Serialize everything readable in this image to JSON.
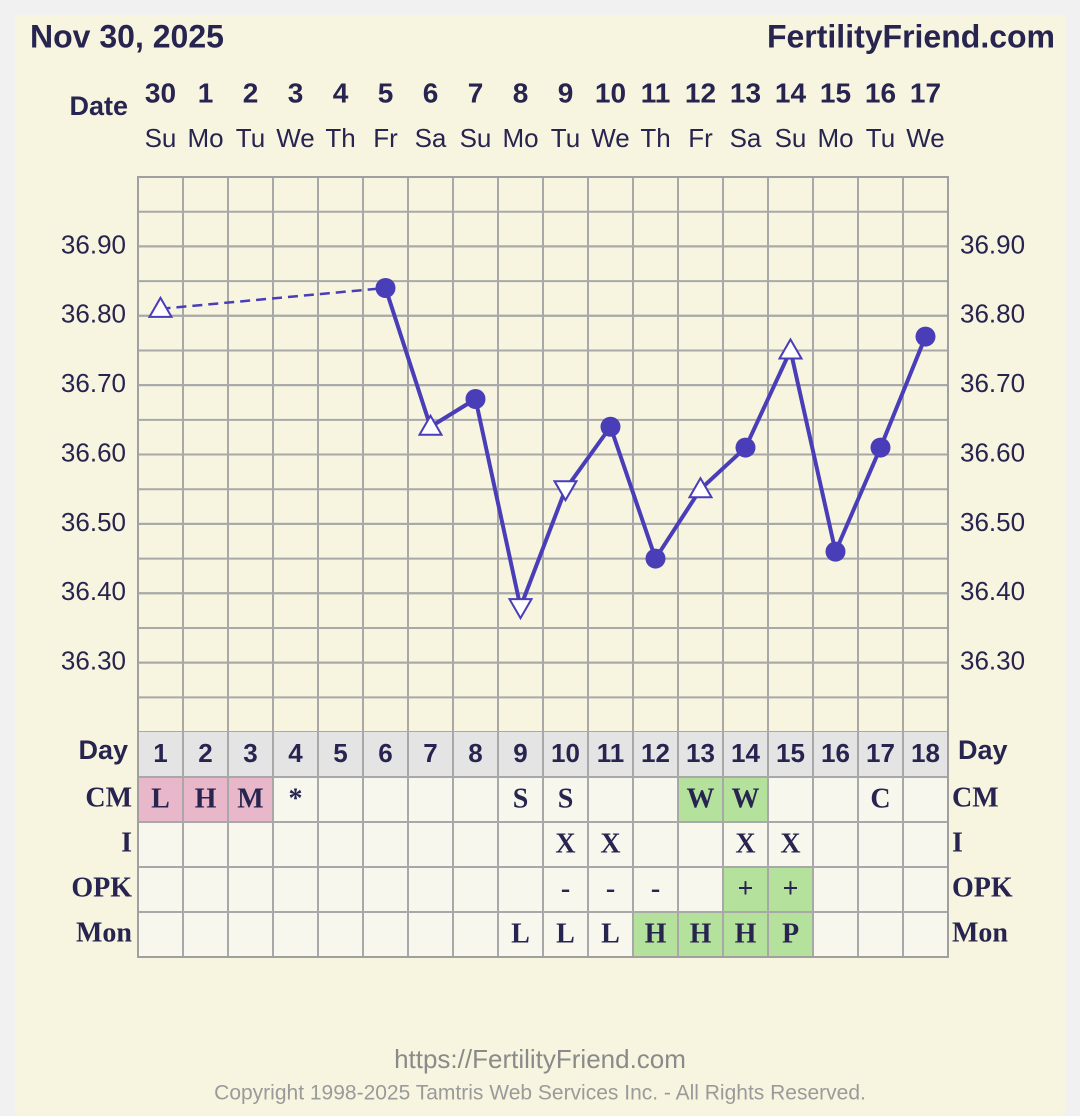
{
  "header": {
    "title": "Nov 30, 2025",
    "brand": "FertilityFriend.com"
  },
  "chart_data": {
    "type": "line",
    "date_label": "Date",
    "categories": [
      "30",
      "1",
      "2",
      "3",
      "4",
      "5",
      "6",
      "7",
      "8",
      "9",
      "10",
      "11",
      "12",
      "13",
      "14",
      "15",
      "16",
      "17"
    ],
    "weekdays": [
      "Su",
      "Mo",
      "Tu",
      "We",
      "Th",
      "Fr",
      "Sa",
      "Su",
      "Mo",
      "Tu",
      "We",
      "Th",
      "Fr",
      "Sa",
      "Su",
      "Mo",
      "Tu",
      "We"
    ],
    "series": [
      {
        "name": "Temperature",
        "color": "#4a3db8",
        "values": [
          36.81,
          null,
          null,
          null,
          null,
          36.84,
          36.64,
          36.68,
          36.38,
          36.55,
          36.64,
          36.45,
          36.55,
          36.61,
          36.75,
          36.46,
          36.61,
          36.77
        ],
        "markers": [
          "triangle-up",
          null,
          null,
          null,
          null,
          "circle",
          "triangle-up",
          "circle",
          "triangle-down",
          "triangle-down",
          "circle",
          "circle",
          "triangle-up",
          "circle",
          "triangle-up",
          "circle",
          "circle",
          "circle"
        ]
      }
    ],
    "ylim": [
      36.2,
      37.0
    ],
    "yticks": [
      {
        "value": 36.3,
        "label": "36.30"
      },
      {
        "value": 36.4,
        "label": "36.40"
      },
      {
        "value": 36.5,
        "label": "36.50"
      },
      {
        "value": 36.6,
        "label": "36.60"
      },
      {
        "value": 36.7,
        "label": "36.70"
      },
      {
        "value": 36.8,
        "label": "36.80"
      },
      {
        "value": 36.9,
        "label": "36.90"
      }
    ],
    "grid": true,
    "grid_step": 0.05
  },
  "table": {
    "day_label": "Day",
    "days": [
      1,
      2,
      3,
      4,
      5,
      6,
      7,
      8,
      9,
      10,
      11,
      12,
      13,
      14,
      15,
      16,
      17,
      18
    ],
    "rows": [
      {
        "label": "CM",
        "cells": [
          "L",
          "H",
          "M",
          "*",
          null,
          null,
          null,
          null,
          "S",
          "S",
          null,
          null,
          "W",
          "W",
          null,
          null,
          "C",
          null
        ],
        "highlight": [
          "#e8b8ca",
          "#e8b8ca",
          "#e8b8ca",
          null,
          null,
          null,
          null,
          null,
          null,
          null,
          null,
          null,
          "#b4e29c",
          "#b4e29c",
          null,
          null,
          null,
          null
        ]
      },
      {
        "label": "I",
        "cells": [
          null,
          null,
          null,
          null,
          null,
          null,
          null,
          null,
          null,
          "X",
          "X",
          null,
          null,
          "X",
          "X",
          null,
          null,
          null
        ],
        "highlight": [
          null,
          null,
          null,
          null,
          null,
          null,
          null,
          null,
          null,
          null,
          null,
          null,
          null,
          null,
          null,
          null,
          null,
          null
        ]
      },
      {
        "label": "OPK",
        "cells": [
          null,
          null,
          null,
          null,
          null,
          null,
          null,
          null,
          null,
          "-",
          "-",
          "-",
          null,
          "+",
          "+",
          null,
          null,
          null
        ],
        "highlight": [
          null,
          null,
          null,
          null,
          null,
          null,
          null,
          null,
          null,
          null,
          null,
          null,
          null,
          "#b4e29c",
          "#b4e29c",
          null,
          null,
          null
        ]
      },
      {
        "label": "Mon",
        "cells": [
          null,
          null,
          null,
          null,
          null,
          null,
          null,
          null,
          "L",
          "L",
          "L",
          "H",
          "H",
          "H",
          "P",
          null,
          null,
          null
        ],
        "highlight": [
          null,
          null,
          null,
          null,
          null,
          null,
          null,
          null,
          null,
          null,
          null,
          "#b4e29c",
          "#b4e29c",
          "#b4e29c",
          "#b4e29c",
          null,
          null,
          null
        ]
      }
    ]
  },
  "footer": {
    "url": "https://FertilityFriend.com",
    "copyright": "Copyright 1998-2025 Tamtris Web Services Inc. - All Rights Reserved."
  }
}
